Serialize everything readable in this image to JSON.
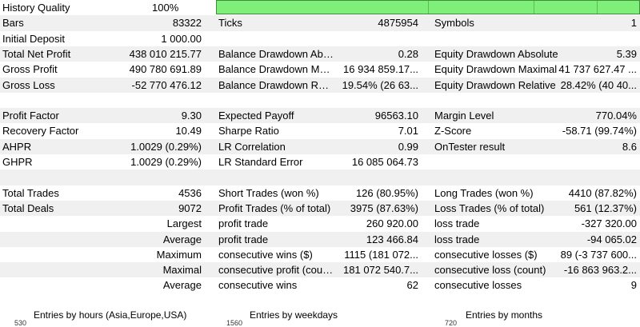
{
  "history_quality": {
    "label": "History Quality",
    "value": "100%",
    "bar_fill": 1.0
  },
  "rows": [
    {
      "alt": true,
      "c0": "Bars",
      "v0": "83322",
      "c1": "Ticks",
      "v1": "4875954",
      "c2": "Symbols",
      "v2": "1"
    },
    {
      "alt": false,
      "c0": "Initial Deposit",
      "v0": "1 000.00",
      "c1": "",
      "v1": "",
      "c2": "",
      "v2": ""
    },
    {
      "alt": true,
      "c0": "Total Net Profit",
      "v0": "438 010 215.77",
      "c1": "Balance Drawdown Absolute",
      "v1": "0.28",
      "c2": "Equity Drawdown Absolute",
      "v2": "5.39"
    },
    {
      "alt": false,
      "c0": "Gross Profit",
      "v0": "490 780 691.89",
      "c1": "Balance Drawdown Maximal",
      "v1": "16 934 859.17...",
      "c2": "Equity Drawdown Maximal",
      "v2": "41 737 627.47 ..."
    },
    {
      "alt": true,
      "c0": "Gross Loss",
      "v0": "-52 770 476.12",
      "c1": "Balance Drawdown Relative",
      "v1": "19.54% (26 63...",
      "c2": "Equity Drawdown Relative",
      "v2": "28.42% (40 40..."
    },
    {
      "alt": false,
      "c0": "",
      "v0": "",
      "c1": "",
      "v1": "",
      "c2": "",
      "v2": ""
    },
    {
      "alt": true,
      "c0": "Profit Factor",
      "v0": "9.30",
      "c1": "Expected Payoff",
      "v1": "96563.10",
      "c2": "Margin Level",
      "v2": "770.04%"
    },
    {
      "alt": false,
      "c0": "Recovery Factor",
      "v0": "10.49",
      "c1": "Sharpe Ratio",
      "v1": "7.01",
      "c2": "Z-Score",
      "v2": "-58.71 (99.74%)"
    },
    {
      "alt": true,
      "c0": "AHPR",
      "v0": "1.0029 (0.29%)",
      "c1": "LR Correlation",
      "v1": "0.99",
      "c2": "OnTester result",
      "v2": "8.6"
    },
    {
      "alt": false,
      "c0": "GHPR",
      "v0": "1.0029 (0.29%)",
      "c1": "LR Standard Error",
      "v1": "16 085 064.73",
      "c2": "",
      "v2": ""
    },
    {
      "alt": true,
      "c0": "",
      "v0": "",
      "c1": "",
      "v1": "",
      "c2": "",
      "v2": ""
    },
    {
      "alt": false,
      "c0": "Total Trades",
      "v0": "4536",
      "c1": "Short Trades (won %)",
      "v1": "126 (80.95%)",
      "c2": "Long Trades (won %)",
      "v2": "4410 (87.82%)"
    },
    {
      "alt": true,
      "c0": "Total Deals",
      "v0": "9072",
      "c1": "Profit Trades (% of total)",
      "v1": "3975 (87.63%)",
      "c2": "Loss Trades (% of total)",
      "v2": "561 (12.37%)"
    },
    {
      "alt": false,
      "l0": "Largest",
      "c1": "profit trade",
      "v1": "260 920.00",
      "c2": "loss trade",
      "v2": "-327 320.00"
    },
    {
      "alt": true,
      "l0": "Average",
      "c1": "profit trade",
      "v1": "123 466.84",
      "c2": "loss trade",
      "v2": "-94 065.02"
    },
    {
      "alt": false,
      "l0": "Maximum",
      "c1": "consecutive wins ($)",
      "v1": "1115 (181 072...",
      "c2": "consecutive losses ($)",
      "v2": "89 (-3 737 600..."
    },
    {
      "alt": true,
      "l0": "Maximal",
      "c1": "consecutive profit (count)",
      "v1": "181 072 540.7...",
      "c2": "consecutive loss (count)",
      "v2": "-16 863 963.2..."
    },
    {
      "alt": false,
      "l0": "Average",
      "c1": "consecutive wins",
      "v1": "62",
      "c2": "consecutive losses",
      "v2": "9"
    }
  ],
  "charts": [
    {
      "title": "Entries by hours (Asia,Europe,USA)",
      "axis_top": "530"
    },
    {
      "title": "Entries by weekdays",
      "axis_top": "1560"
    },
    {
      "title": "Entries by months",
      "axis_top": "720"
    }
  ]
}
